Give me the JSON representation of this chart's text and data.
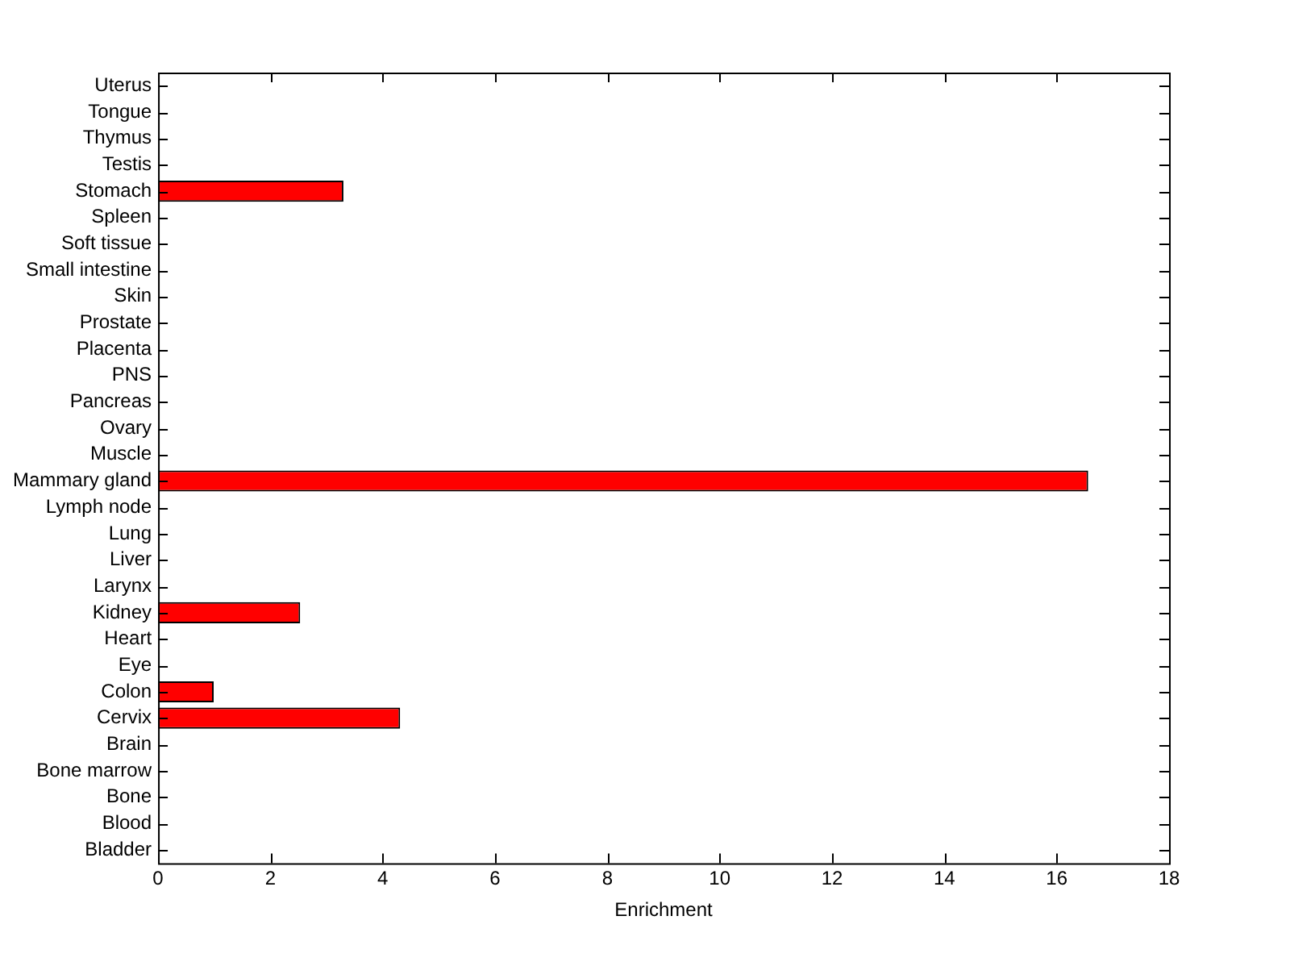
{
  "chart_data": {
    "type": "bar",
    "orientation": "horizontal",
    "xlabel": "Enrichment",
    "categories": [
      "Uterus",
      "Tongue",
      "Thymus",
      "Testis",
      "Stomach",
      "Spleen",
      "Soft tissue",
      "Small intestine",
      "Skin",
      "Prostate",
      "Placenta",
      "PNS",
      "Pancreas",
      "Ovary",
      "Muscle",
      "Mammary gland",
      "Lymph node",
      "Lung",
      "Liver",
      "Larynx",
      "Kidney",
      "Heart",
      "Eye",
      "Colon",
      "Cervix",
      "Brain",
      "Bone marrow",
      "Bone",
      "Blood",
      "Bladder"
    ],
    "values": [
      0,
      0,
      0,
      0,
      3.3,
      0,
      0,
      0,
      0,
      0,
      0,
      0,
      0,
      0,
      0,
      16.56,
      0,
      0,
      0,
      0,
      2.53,
      0,
      0,
      0.99,
      4.31,
      0,
      0,
      0,
      0,
      0
    ],
    "color": "#ff0000",
    "xlim": [
      0,
      18
    ],
    "xticks": [
      0,
      2,
      4,
      6,
      8,
      10,
      12,
      14,
      16,
      18
    ],
    "grid": false,
    "legend": false
  }
}
